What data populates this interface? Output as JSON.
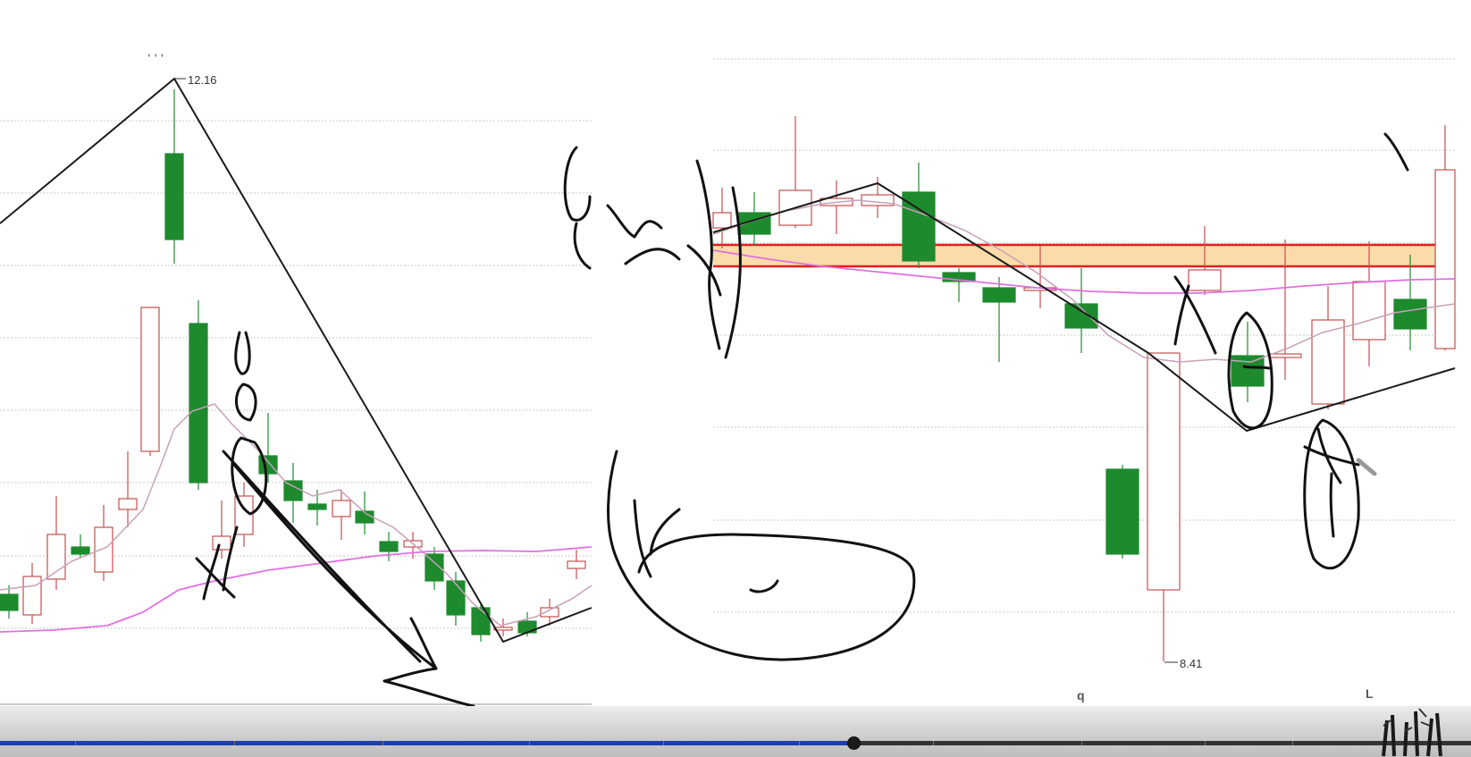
{
  "left_chart": {
    "high_label": "12.16",
    "top_marks": ", , ,"
  },
  "right_chart": {
    "low_label": "8.41",
    "bottom_label_q": "q",
    "bottom_label_l": "L"
  },
  "colors": {
    "up_candle": "#c0504d",
    "down_candle": "#1e8a2e",
    "ma_short": "#c8a0b8",
    "ma_long": "#e070e0",
    "resistance_band": "#f9d59a",
    "resistance_lines": "#e02020",
    "trend_line": "#1a1a1a",
    "progress_fill": "#1f3ea8"
  },
  "player": {
    "progress": 0.58
  },
  "icons": {
    "watermark": "bamboo-watermark-icon"
  }
}
